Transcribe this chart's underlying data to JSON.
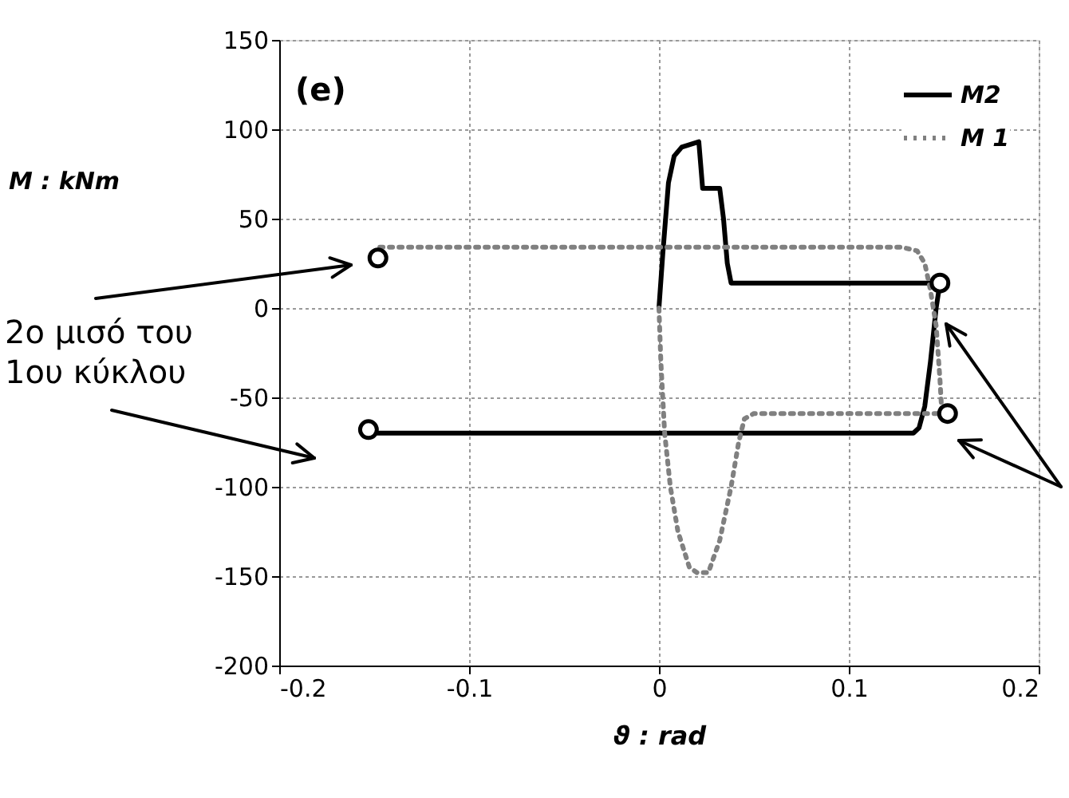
{
  "chart_data": {
    "type": "line",
    "xlabel": "ϑ : rad",
    "ylabel": "M : kNm",
    "xlim": [
      -0.2,
      0.2
    ],
    "xticks": [
      -0.2,
      -0.1,
      0,
      0.1,
      0.2
    ],
    "ylim": [
      -200,
      150
    ],
    "yticks": [
      -200,
      -150,
      -100,
      -50,
      0,
      50,
      100,
      150
    ],
    "grid": true,
    "legend": "top right",
    "annotations": [
      "(e)",
      "2ο μισό του 1ου κύκλου"
    ],
    "series": [
      {
        "name": "M2",
        "color": "#000000",
        "line_style": "solid",
        "x": [
          0,
          0.002,
          0.005,
          0.008,
          0.012,
          0.021,
          0.022,
          0.023,
          0.032,
          0.034,
          0.036,
          0.038,
          0.148,
          0.146,
          0.143,
          0.14,
          0.137,
          0.134,
          -0.153
        ],
        "values": [
          0,
          30,
          70,
          85,
          90,
          93,
          80,
          67,
          67,
          50,
          25,
          14,
          14,
          0,
          -30,
          -55,
          -67,
          -70,
          -70
        ]
      },
      {
        "name": "M 1",
        "color": "#808080",
        "line_style": "dotted",
        "x": [
          0,
          0.001,
          0.003,
          0.006,
          0.01,
          0.016,
          0.02,
          0.026,
          0.032,
          0.038,
          0.042,
          0.045,
          0.05,
          0.149,
          0.148,
          0.146,
          0.143,
          0.14,
          0.136,
          0.128,
          -0.148
        ],
        "values": [
          0,
          -30,
          -70,
          -100,
          -125,
          -145,
          -148,
          -148,
          -130,
          -100,
          -75,
          -62,
          -59,
          -59,
          -40,
          -10,
          10,
          25,
          32,
          34,
          34
        ]
      },
      {
        "type": "scatter",
        "color": "#000000",
        "marker": "circle",
        "x": [
          -0.148,
          0.148,
          -0.153,
          0.152
        ],
        "values": [
          28,
          14,
          -68,
          -59
        ]
      }
    ]
  }
}
